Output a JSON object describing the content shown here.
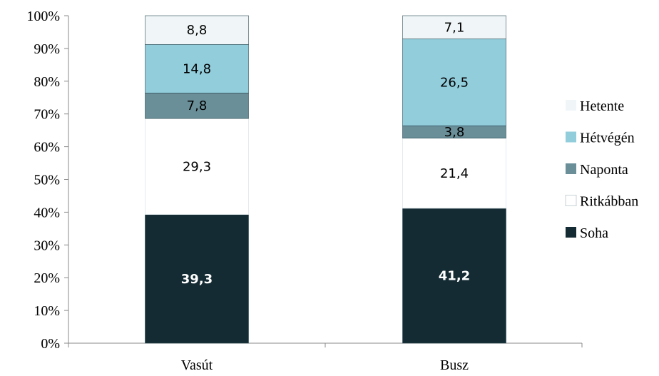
{
  "chart_data": {
    "type": "bar",
    "stacked": true,
    "percent_stacked": true,
    "categories": [
      "Vasút",
      "Busz"
    ],
    "series": [
      {
        "name": "Soha",
        "values": [
          39.3,
          41.2
        ],
        "color": "#142b33",
        "label_color": "#ffffff"
      },
      {
        "name": "Ritkábban",
        "values": [
          29.3,
          21.4
        ],
        "color": "#ffffff",
        "label_color": "#000000"
      },
      {
        "name": "Naponta",
        "values": [
          7.8,
          3.8
        ],
        "color": "#6a8f99",
        "label_color": "#000000"
      },
      {
        "name": "Hétvégén",
        "values": [
          14.8,
          26.5
        ],
        "color": "#92cddc",
        "label_color": "#000000"
      },
      {
        "name": "Hetente",
        "values": [
          8.8,
          7.1
        ],
        "color": "#f0f6f8",
        "label_color": "#000000"
      }
    ],
    "data_labels": [
      [
        "39,3",
        "41,2"
      ],
      [
        "29,3",
        "21,4"
      ],
      [
        "7,8",
        "3,8"
      ],
      [
        "14,8",
        "26,5"
      ],
      [
        "8,8",
        "7,1"
      ]
    ],
    "ylim": [
      0,
      100
    ],
    "y_ticks": [
      "0%",
      "10%",
      "20%",
      "30%",
      "40%",
      "50%",
      "60%",
      "70%",
      "80%",
      "90%",
      "100%"
    ],
    "legend_order": [
      "Hetente",
      "Hétvégén",
      "Naponta",
      "Ritkábban",
      "Soha"
    ],
    "legend_position": "right",
    "grid": false,
    "title": "",
    "xlabel": "",
    "ylabel": ""
  }
}
